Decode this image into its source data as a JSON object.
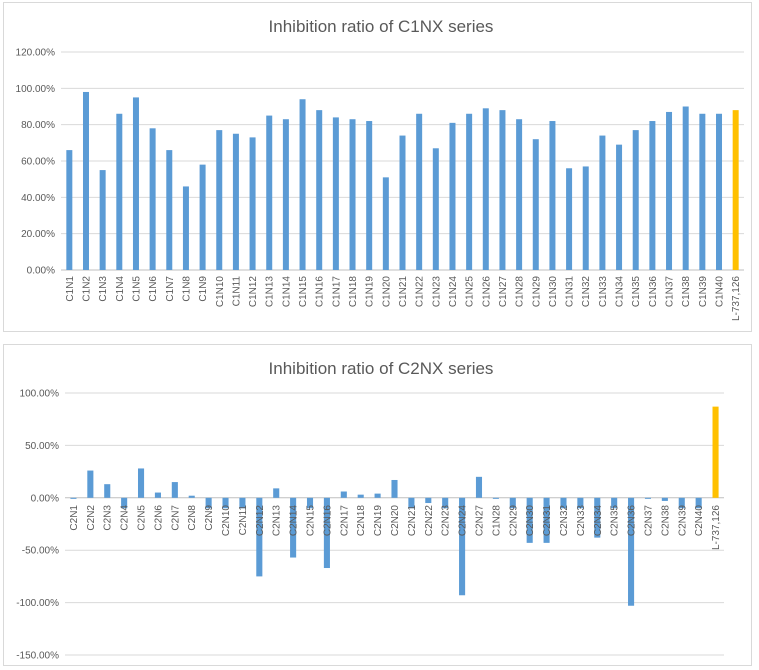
{
  "colors": {
    "series": "#5b9bd5",
    "reference": "#ffc000",
    "grid": "#d9d9d9",
    "text": "#595959"
  },
  "chart_data": [
    {
      "type": "bar",
      "title": "Inhibition ratio of C1NX series",
      "categories": [
        "C1N1",
        "C1N2",
        "C1N3",
        "C1N4",
        "C1N5",
        "C1N6",
        "C1N7",
        "C1N8",
        "C1N9",
        "C1N10",
        "C1N11",
        "C1N12",
        "C1N13",
        "C1N14",
        "C1N15",
        "C1N16",
        "C1N17",
        "C1N18",
        "C1N19",
        "C1N20",
        "C1N21",
        "C1N22",
        "C1N23",
        "C1N24",
        "C1N25",
        "C1N26",
        "C1N27",
        "C1N28",
        "C1N29",
        "C1N30",
        "C1N31",
        "C1N32",
        "C1N33",
        "C1N34",
        "C1N35",
        "C1N36",
        "C1N37",
        "C1N38",
        "C1N39",
        "C1N40",
        "L-737,126"
      ],
      "values": [
        66,
        98,
        55,
        86,
        95,
        78,
        66,
        46,
        58,
        77,
        75,
        73,
        85,
        83,
        94,
        88,
        84,
        83,
        82,
        51,
        74,
        86,
        67,
        81,
        86,
        89,
        88,
        83,
        72,
        82,
        56,
        57,
        74,
        69,
        77,
        82,
        87,
        90,
        86,
        86,
        88
      ],
      "highlight_index": 40,
      "ylim": [
        0,
        120
      ],
      "yticks": [
        0,
        20,
        40,
        60,
        80,
        100,
        120
      ],
      "ytick_labels": [
        "0.00%",
        "20.00%",
        "40.00%",
        "60.00%",
        "80.00%",
        "100.00%",
        "120.00%"
      ],
      "xlabel": "",
      "ylabel": "",
      "grid": true,
      "legend": "none"
    },
    {
      "type": "bar",
      "title": "Inhibition ratio of C2NX series",
      "categories": [
        "C2N1",
        "C2N2",
        "C2N3",
        "C2N4",
        "C2N5",
        "C2N6",
        "C2N7",
        "C2N8",
        "C2N9",
        "C2N10",
        "C2N11",
        "C2N12",
        "C2N13",
        "C2N14",
        "C2N15",
        "C2N16",
        "C2N17",
        "C2N18",
        "C2N19",
        "C2N20",
        "C2N21",
        "C2N22",
        "C2N23",
        "C2N24",
        "C2N27",
        "C1N28",
        "C2N29",
        "C2N30",
        "C2N31",
        "C2N32",
        "C2N33",
        "C2N34",
        "C2N35",
        "C2N36",
        "C2N37",
        "C2N38",
        "C2N39",
        "C2N40",
        "L-737,126"
      ],
      "values": [
        -1,
        26,
        13,
        -10,
        28,
        5,
        15,
        2,
        -10,
        -10,
        -10,
        -75,
        9,
        -57,
        -10,
        -67,
        6,
        3,
        4,
        17,
        -10,
        -5,
        -10,
        -93,
        20,
        -1,
        -10,
        -43,
        -43,
        -10,
        -10,
        -38,
        -10,
        -103,
        -1,
        -3,
        -10,
        -10,
        87
      ],
      "highlight_index": 38,
      "ylim": [
        -150,
        100
      ],
      "yticks": [
        -150,
        -100,
        -50,
        0,
        50,
        100
      ],
      "ytick_labels": [
        "-150.00%",
        "-100.00%",
        "-50.00%",
        "0.00%",
        "50.00%",
        "100.00%"
      ],
      "xlabel": "",
      "ylabel": "",
      "grid": true,
      "legend": "none"
    }
  ]
}
